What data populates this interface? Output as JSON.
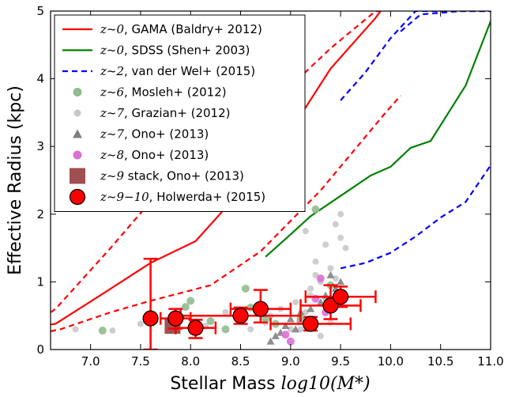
{
  "chart_data": {
    "type": "scatter",
    "xlabel_prefix": "Stellar Mass ",
    "xlabel_math": "log10(M*)",
    "ylabel": "Effective Radius (kpc)",
    "xlim": [
      6.6,
      11.0
    ],
    "ylim": [
      0,
      5
    ],
    "x_ticks": [
      "7.0",
      "7.5",
      "8.0",
      "8.5",
      "9.0",
      "9.5",
      "10.0",
      "10.5",
      "11.0"
    ],
    "y_ticks": [
      "0",
      "1",
      "2",
      "3",
      "4",
      "5"
    ],
    "legend_position": "upper-left",
    "legend": [
      {
        "z": "z~0",
        "rest": ", GAMA (Baldry+ 2012)",
        "style": "line",
        "color": "#ff0000"
      },
      {
        "z": "z~0",
        "rest": ", SDSS (Shen+ 2003)",
        "style": "line",
        "color": "#008000"
      },
      {
        "z": "z~2",
        "rest": ", van der Wel+ (2015)",
        "style": "dashed",
        "color": "#0000ff"
      },
      {
        "z": "z~6",
        "rest": ", Mosleh+ (2012)",
        "style": "circle",
        "color": "#8fbc8f"
      },
      {
        "z": "z~7",
        "rest": ", Grazian+ (2012)",
        "style": "circle-small",
        "color": "#c8c8c8"
      },
      {
        "z": "z~7",
        "rest": ", Ono+ (2013)",
        "style": "triangle",
        "color": "#808080"
      },
      {
        "z": "z~8",
        "rest": ", Ono+ (2013)",
        "style": "circle",
        "color": "#da70d6"
      },
      {
        "z": "z~9",
        "rest": " stack, Ono+ (2013)",
        "style": "square",
        "color": "#a05050"
      },
      {
        "z": "z~9−10",
        "rest": ", Holwerda+ (2015)",
        "style": "big-circle",
        "color": "#ff0000"
      }
    ],
    "gama_median": {
      "x": [
        6.6,
        6.65,
        7.15,
        7.6,
        8.05,
        8.9,
        9.4,
        9.85,
        9.9
      ],
      "y": [
        0.37,
        0.38,
        0.85,
        1.28,
        1.6,
        3.0,
        4.15,
        4.9,
        5.0
      ]
    },
    "gama_upper": {
      "x": [
        6.6,
        6.65,
        7.2,
        7.55,
        8.0,
        8.4,
        8.9,
        9.4,
        9.85,
        9.9
      ],
      "y": [
        0.55,
        0.6,
        1.5,
        2.1,
        2.55,
        2.95,
        3.75,
        4.45,
        5.0,
        5.0
      ]
    },
    "gama_lower": {
      "x": [
        6.6,
        6.7,
        7.2,
        7.6,
        8.2,
        8.7,
        9.3,
        9.95,
        10.1
      ],
      "y": [
        0.27,
        0.3,
        0.55,
        0.72,
        0.95,
        1.45,
        2.35,
        3.5,
        3.75
      ]
    },
    "sdss": {
      "x": [
        8.75,
        9.0,
        9.2,
        9.5,
        9.8,
        10.0,
        10.2,
        10.4,
        10.75,
        11.0
      ],
      "y": [
        1.37,
        1.7,
        1.97,
        2.27,
        2.57,
        2.7,
        2.98,
        3.08,
        3.9,
        4.85
      ]
    },
    "vdw_upper": {
      "x": [
        9.5,
        9.75,
        10.0,
        10.25,
        10.5,
        10.75,
        11.0
      ],
      "y": [
        3.68,
        4.1,
        4.6,
        5.0,
        5.0,
        5.0,
        5.0
      ]
    },
    "vdw_upper2": {
      "x": [
        10.1,
        10.3,
        10.7,
        11.0
      ],
      "y": [
        4.7,
        4.95,
        5.0,
        5.0
      ]
    },
    "vdw_lower": {
      "x": [
        9.5,
        9.75,
        10.0,
        10.25,
        10.5,
        10.75,
        11.0
      ],
      "y": [
        1.2,
        1.28,
        1.43,
        1.67,
        1.95,
        2.18,
        2.72
      ]
    },
    "mosleh": {
      "x": [
        7.12,
        7.9,
        7.95,
        8.0,
        8.2,
        8.35,
        8.55,
        8.6,
        8.75,
        8.85,
        9.1,
        9.25,
        9.4,
        9.45
      ],
      "y": [
        0.28,
        0.48,
        0.63,
        0.72,
        0.42,
        0.3,
        0.9,
        0.62,
        0.45,
        0.38,
        0.45,
        2.07,
        0.95,
        0.75
      ]
    },
    "grazian": {
      "x": [
        6.85,
        7.22,
        7.5,
        7.8,
        8.15,
        8.35,
        8.55,
        8.6,
        8.75,
        8.8,
        8.9,
        9.0,
        9.05,
        9.1,
        9.15,
        9.2,
        9.25,
        9.3,
        9.35,
        9.4,
        9.45,
        9.5,
        9.55,
        9.3,
        9.2,
        9.1,
        9.45,
        9.5,
        9.35,
        9.25,
        9.4,
        9.15
      ],
      "y": [
        0.3,
        0.28,
        0.38,
        0.42,
        0.35,
        0.55,
        0.5,
        0.3,
        0.4,
        0.5,
        0.6,
        0.3,
        0.7,
        0.45,
        0.55,
        0.9,
        1.3,
        1.0,
        1.55,
        1.2,
        1.85,
        1.65,
        1.5,
        0.2,
        0.8,
        0.3,
        1.05,
        2.0,
        0.75,
        1.1,
        0.4,
        1.75
      ]
    },
    "ono_z7": {
      "x": [
        8.8,
        8.85,
        8.9,
        8.95,
        9.0,
        9.05,
        9.1,
        9.2,
        9.3,
        9.35,
        9.4,
        9.45,
        9.5
      ],
      "y": [
        0.12,
        0.2,
        0.25,
        0.35,
        0.45,
        0.3,
        0.55,
        0.6,
        0.7,
        0.8,
        1.1,
        0.9,
        1.0
      ]
    },
    "ono_z8": {
      "x": [
        8.95,
        9.0,
        9.1,
        9.25,
        9.3,
        9.35
      ],
      "y": [
        0.22,
        0.12,
        0.42,
        0.75,
        1.05,
        0.55
      ]
    },
    "ono_z9_stack": {
      "x": [
        7.82
      ],
      "y": [
        0.35
      ]
    },
    "holwerda": {
      "x": [
        7.6,
        7.85,
        8.05,
        8.5,
        8.7,
        9.2,
        9.4,
        9.5
      ],
      "y": [
        0.46,
        0.46,
        0.32,
        0.5,
        0.6,
        0.38,
        0.65,
        0.78
      ],
      "xerr": [
        0.0,
        0.15,
        0.2,
        0.6,
        0.3,
        0.4,
        0.3,
        0.35
      ],
      "yerr_lo": [
        0.46,
        0.15,
        0.15,
        0.12,
        0.2,
        0.1,
        0.2,
        0.15
      ],
      "yerr_hi": [
        0.88,
        0.14,
        0.12,
        0.12,
        0.28,
        0.1,
        0.3,
        0.15
      ]
    }
  }
}
